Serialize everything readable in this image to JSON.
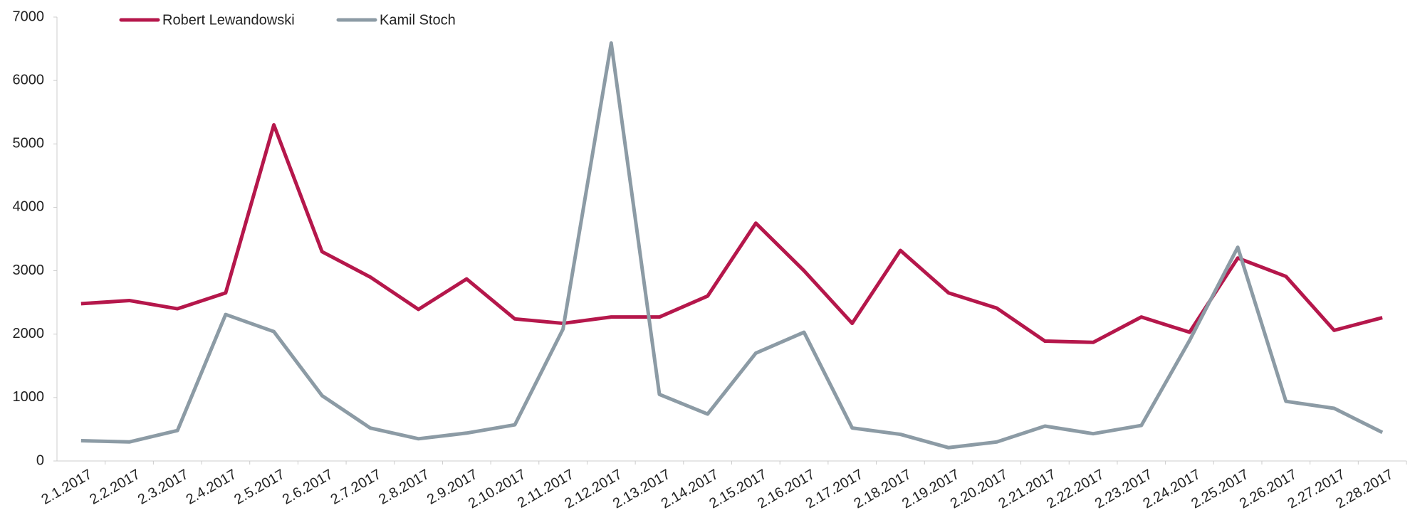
{
  "chart_data": {
    "type": "line",
    "categories": [
      "2.1.2017",
      "2.2.2017",
      "2.3.2017",
      "2.4.2017",
      "2.5.2017",
      "2.6.2017",
      "2.7.2017",
      "2.8.2017",
      "2.9.2017",
      "2.10.2017",
      "2.11.2017",
      "2.12.2017",
      "2.13.2017",
      "2.14.2017",
      "2.15.2017",
      "2.16.2017",
      "2.17.2017",
      "2.18.2017",
      "2.19.2017",
      "2.20.2017",
      "2.21.2017",
      "2.22.2017",
      "2.23.2017",
      "2.24.2017",
      "2.25.2017",
      "2.26.2017",
      "2.27.2017",
      "2.28.2017"
    ],
    "series": [
      {
        "name": "Robert Lewandowski",
        "color": "#b5174b",
        "values": [
          2480,
          2530,
          2400,
          2650,
          5300,
          3300,
          2900,
          2390,
          2870,
          2240,
          2170,
          2270,
          2270,
          2600,
          3750,
          3000,
          2170,
          3320,
          2650,
          2410,
          1890,
          1870,
          2270,
          2030,
          3200,
          2910,
          2060,
          2260
        ]
      },
      {
        "name": "Kamil Stoch",
        "color": "#8c9ba5",
        "values": [
          320,
          300,
          480,
          2310,
          2040,
          1030,
          520,
          350,
          440,
          570,
          2080,
          6590,
          1050,
          740,
          1700,
          2030,
          520,
          420,
          210,
          300,
          550,
          430,
          560,
          1900,
          3370,
          940,
          830,
          450
        ]
      }
    ],
    "ylim": [
      0,
      7000
    ],
    "yticks": [
      0,
      1000,
      2000,
      3000,
      4000,
      5000,
      6000,
      7000
    ],
    "grid": false,
    "legend": "top"
  }
}
